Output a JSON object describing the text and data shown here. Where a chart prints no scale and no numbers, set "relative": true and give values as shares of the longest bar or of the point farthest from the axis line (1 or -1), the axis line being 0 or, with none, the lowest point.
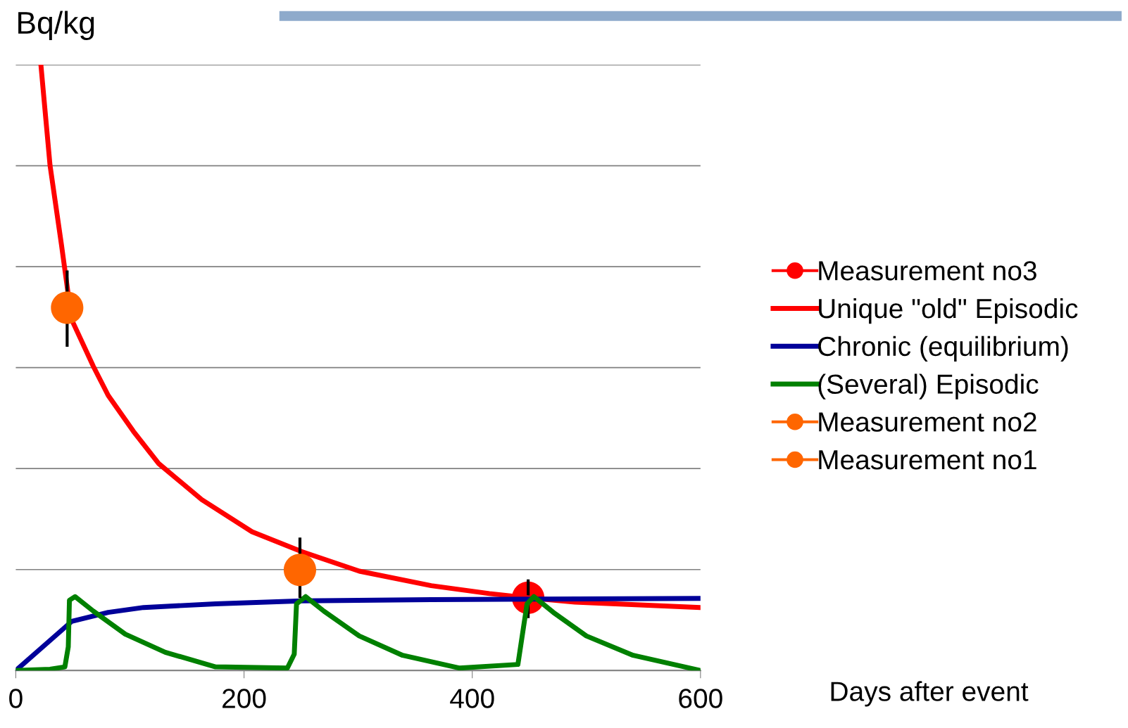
{
  "chart_data": {
    "type": "line",
    "relative": true,
    "ylabel": "Bq/kg",
    "xlabel": "Days after event",
    "xlim": [
      0,
      600
    ],
    "xticks": [
      0,
      200,
      400,
      600
    ],
    "grid": "y",
    "legend": "right",
    "tick_labels": "x",
    "marker": "none",
    "line_style": "solid",
    "series": [
      {
        "name": "Measurement no3",
        "type": "scatter",
        "marker": "circle",
        "color": "#ff0000",
        "x": [
          449
        ],
        "values": [
          0.12
        ]
      },
      {
        "type": "line",
        "color": "#000000",
        "x": [
          449,
          449
        ],
        "values": [
          0.089,
          0.148
        ]
      },
      {
        "name": "Unique \"old\" Episodic",
        "color": "#ff0000",
        "x": [
          22,
          30,
          40,
          49,
          68,
          81,
          103,
          125,
          163,
          207,
          251,
          301,
          364,
          415,
          449,
          490,
          600
        ],
        "values": [
          1.0,
          0.834,
          0.703,
          0.579,
          0.502,
          0.454,
          0.395,
          0.342,
          0.282,
          0.229,
          0.196,
          0.164,
          0.14,
          0.127,
          0.12,
          0.113,
          0.104
        ]
      },
      {
        "name": "Chronic (equilibrium)",
        "color": "#000099",
        "x": [
          0,
          49,
          81,
          112,
          175,
          251,
          364,
          600
        ],
        "values": [
          0,
          0.081,
          0.096,
          0.104,
          0.11,
          0.115,
          0.117,
          0.119
        ]
      },
      {
        "name": "(Several) Episodic",
        "color": "#008000",
        "x": [
          0,
          30,
          43,
          46,
          47,
          52,
          68,
          96,
          131,
          175,
          238,
          244,
          246,
          254,
          270,
          301,
          339,
          389,
          440,
          448,
          454,
          471,
          500,
          541,
          600
        ],
        "values": [
          0,
          0.002,
          0.006,
          0.039,
          0.116,
          0.122,
          0.098,
          0.06,
          0.03,
          0.006,
          0.004,
          0.027,
          0.11,
          0.122,
          0.098,
          0.057,
          0.025,
          0.004,
          0.01,
          0.11,
          0.122,
          0.096,
          0.057,
          0.025,
          0
        ]
      },
      {
        "type": "line",
        "color": "#000000",
        "x": [
          249,
          249
        ],
        "values": [
          0.122,
          0.217
        ]
      },
      {
        "name": "Measurement no2",
        "type": "scatter",
        "marker": "circle",
        "color": "#ff6600",
        "x": [
          249
        ],
        "values": [
          0.166
        ]
      },
      {
        "type": "line",
        "color": "#000000",
        "x": [
          45,
          45
        ],
        "values": [
          0.537,
          0.658
        ]
      },
      {
        "name": "Measurement no1",
        "type": "scatter",
        "marker": "circle",
        "color": "#ff6600",
        "x": [
          45
        ],
        "values": [
          0.599
        ]
      }
    ]
  }
}
